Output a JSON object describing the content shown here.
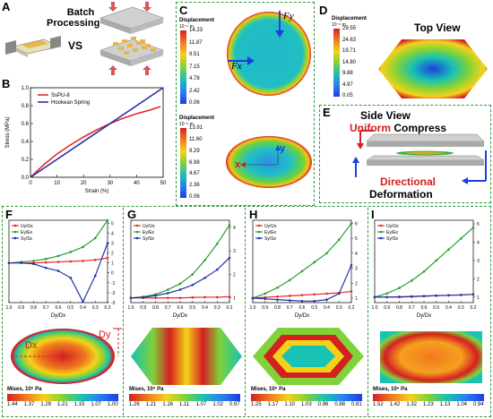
{
  "panels": {
    "A": {
      "letter": "A",
      "title_line1": "Batch",
      "title_line2": "Processing",
      "vs": "VS"
    },
    "B": {
      "letter": "B"
    },
    "C": {
      "letter": "C"
    },
    "D": {
      "letter": "D",
      "title": "Top View"
    },
    "E": {
      "letter": "E",
      "title": "Side View",
      "uniform": "Uniform",
      "compress": " Compress",
      "directional": "Directional",
      "deformation": "Deformation"
    },
    "F": {
      "letter": "F",
      "dx": "Dx",
      "dy": "Dy"
    },
    "G": {
      "letter": "G"
    },
    "H": {
      "letter": "H"
    },
    "I": {
      "letter": "I"
    }
  },
  "colorbars": {
    "c_top": {
      "title": "Displacement",
      "unit": "10⁻⁶ m",
      "ticks": [
        "14.23",
        "11.87",
        "9.51",
        "7.15",
        "4.78",
        "2.42",
        "0.06"
      ]
    },
    "c_bot": {
      "title": "Displacement",
      "unit": "10⁻⁶ m",
      "ticks": [
        "13.91",
        "11.60",
        "9.29",
        "6.98",
        "4.67",
        "2.36",
        "0.06"
      ]
    },
    "d": {
      "title": "Displacement",
      "unit": "10⁻⁶ m",
      "ticks": [
        "29.55",
        "24.63",
        "19.71",
        "14.80",
        "9.88",
        "4.97",
        "0.05"
      ]
    },
    "f": {
      "title": "Mises, 10⁶ Pa",
      "ticks": [
        "1.44",
        "1.37",
        "1.29",
        "1.21",
        "1.15",
        "1.07",
        "1.00"
      ]
    },
    "g": {
      "title": "Mises, 10⁶ Pa",
      "ticks": [
        "1.26",
        "1.21",
        "1.16",
        "1.11",
        "1.07",
        "1.02",
        "0.97"
      ]
    },
    "h": {
      "title": "Mises, 10⁶ Pa",
      "ticks": [
        "1.25",
        "1.17",
        "1.10",
        "1.03",
        "0.96",
        "0.88",
        "0.81"
      ]
    },
    "i": {
      "title": "Mises, 10⁶ Pa",
      "ticks": [
        "1.52",
        "1.42",
        "1.32",
        "1.23",
        "1.13",
        "1.04",
        "0.94"
      ]
    }
  },
  "force_labels": {
    "fy": "Fy",
    "fx": "Fx",
    "y": "y",
    "x": "x"
  },
  "chart_data": [
    {
      "id": "B",
      "type": "line",
      "xlabel": "Strain (%)",
      "ylabel": "Stress (MPa)",
      "xlim": [
        0,
        50
      ],
      "ylim": [
        0,
        1.0
      ],
      "xticks": [
        "0",
        "10",
        "20",
        "30",
        "40",
        "50"
      ],
      "yticks": [
        "0.0",
        "0.2",
        "0.4",
        "0.6",
        "0.8",
        "1.0"
      ],
      "legend_position": "top-left",
      "series": [
        {
          "name": "SsPU-8",
          "color": "#e8262a",
          "x": [
            0,
            5,
            10,
            15,
            20,
            25,
            30,
            35,
            40,
            45,
            49
          ],
          "y": [
            0,
            0.14,
            0.26,
            0.36,
            0.45,
            0.53,
            0.6,
            0.66,
            0.71,
            0.75,
            0.79
          ]
        },
        {
          "name": "Hookean Spring",
          "color": "#2233aa",
          "x": [
            0,
            50
          ],
          "y": [
            0,
            1.0
          ]
        }
      ]
    },
    {
      "id": "F",
      "type": "line",
      "xlabel": "Dy/Dx",
      "xticks": [
        "1.0",
        "0.9",
        "0.8",
        "0.7",
        "0.6",
        "0.5",
        "0.4",
        "0.3",
        "0.2"
      ],
      "y_right_ticks": [
        "5",
        "4",
        "3",
        "2",
        "1",
        "0",
        "-1",
        "-2",
        "-3"
      ],
      "ylim": [
        -3,
        5.3
      ],
      "x": [
        1.0,
        0.9,
        0.8,
        0.7,
        0.6,
        0.5,
        0.4,
        0.3,
        0.2
      ],
      "series": [
        {
          "name": "Uy/Ux",
          "color": "#e8262a",
          "values": [
            1.0,
            1.0,
            1.0,
            1.05,
            1.1,
            1.15,
            1.2,
            1.3,
            1.5
          ]
        },
        {
          "name": "Ey/Ex",
          "color": "#27a02c",
          "values": [
            1.0,
            1.1,
            1.2,
            1.4,
            1.7,
            2.1,
            2.6,
            3.5,
            5.3
          ]
        },
        {
          "name": "Sy/Sx",
          "color": "#2233aa",
          "values": [
            1.0,
            1.0,
            0.9,
            0.5,
            0.2,
            -0.5,
            -2.9,
            -0.3,
            3.0
          ]
        }
      ]
    },
    {
      "id": "G",
      "type": "line",
      "xlabel": "Dy/Dx",
      "xticks": [
        "1.0",
        "0.9",
        "0.8",
        "0.7",
        "0.6",
        "0.5",
        "0.4",
        "0.3",
        "0.2"
      ],
      "y_right_ticks": [
        "4",
        "3",
        "2",
        "1"
      ],
      "ylim": [
        0.8,
        4.3
      ],
      "x": [
        1.0,
        0.9,
        0.8,
        0.7,
        0.6,
        0.5,
        0.4,
        0.3,
        0.2
      ],
      "series": [
        {
          "name": "Uy/Ux",
          "color": "#e8262a",
          "values": [
            1.0,
            1.0,
            1.0,
            1.0,
            1.0,
            1.02,
            1.03,
            1.03,
            1.05
          ]
        },
        {
          "name": "Ey/Ex",
          "color": "#27a02c",
          "values": [
            1.0,
            1.05,
            1.15,
            1.35,
            1.6,
            2.0,
            2.6,
            3.3,
            4.1
          ]
        },
        {
          "name": "Sy/Sx",
          "color": "#2233aa",
          "values": [
            1.0,
            1.02,
            1.1,
            1.2,
            1.35,
            1.55,
            1.85,
            2.2,
            2.7
          ]
        }
      ]
    },
    {
      "id": "H",
      "type": "line",
      "xlabel": "Dy/Dx",
      "xticks": [
        "1.0",
        "0.9",
        "0.8",
        "0.7",
        "0.6",
        "0.5",
        "0.4",
        "0.3",
        "0.2"
      ],
      "y_right_ticks": [
        "6",
        "5",
        "4",
        "3",
        "2",
        "1"
      ],
      "ylim": [
        0.7,
        6.2
      ],
      "x": [
        1.0,
        0.9,
        0.8,
        0.7,
        0.6,
        0.5,
        0.4,
        0.3,
        0.2
      ],
      "series": [
        {
          "name": "Uy/Ux",
          "color": "#e8262a",
          "values": [
            1.0,
            1.05,
            1.1,
            1.15,
            1.2,
            1.25,
            1.3,
            1.35,
            1.45
          ]
        },
        {
          "name": "Ey/Ex",
          "color": "#27a02c",
          "values": [
            1.0,
            1.3,
            1.7,
            2.2,
            2.8,
            3.4,
            4.0,
            4.9,
            6.0
          ]
        },
        {
          "name": "Sy/Sx",
          "color": "#2233aa",
          "values": [
            1.0,
            0.95,
            0.9,
            0.85,
            0.8,
            0.8,
            0.9,
            1.3,
            3.2
          ]
        }
      ]
    },
    {
      "id": "I",
      "type": "line",
      "xlabel": "Dy/Dx",
      "xticks": [
        "1.0",
        "0.9",
        "0.8",
        "0.7",
        "0.6",
        "0.5",
        "0.4",
        "0.3",
        "0.2"
      ],
      "y_right_ticks": [
        "5",
        "4",
        "3",
        "2",
        "1"
      ],
      "ylim": [
        0.7,
        5.2
      ],
      "x": [
        1.0,
        0.9,
        0.8,
        0.7,
        0.6,
        0.5,
        0.4,
        0.3,
        0.2
      ],
      "series": [
        {
          "name": "Uy/Ux",
          "color": "#e8262a",
          "values": [
            1.0,
            1.0,
            1.0,
            1.02,
            1.05,
            1.08,
            1.1,
            1.12,
            1.15
          ]
        },
        {
          "name": "Ey/Ex",
          "color": "#27a02c",
          "values": [
            1.0,
            1.2,
            1.5,
            1.9,
            2.4,
            3.0,
            3.6,
            4.2,
            4.8
          ]
        },
        {
          "name": "Sy/Sx",
          "color": "#2233aa",
          "values": [
            1.0,
            1.0,
            1.02,
            1.04,
            1.06,
            1.08,
            1.1,
            1.12,
            1.15
          ]
        }
      ]
    }
  ],
  "colors": {
    "frame_green": "#2e9a3e",
    "red": "#e8262a",
    "blue": "#2233aa",
    "green": "#27a02c"
  }
}
